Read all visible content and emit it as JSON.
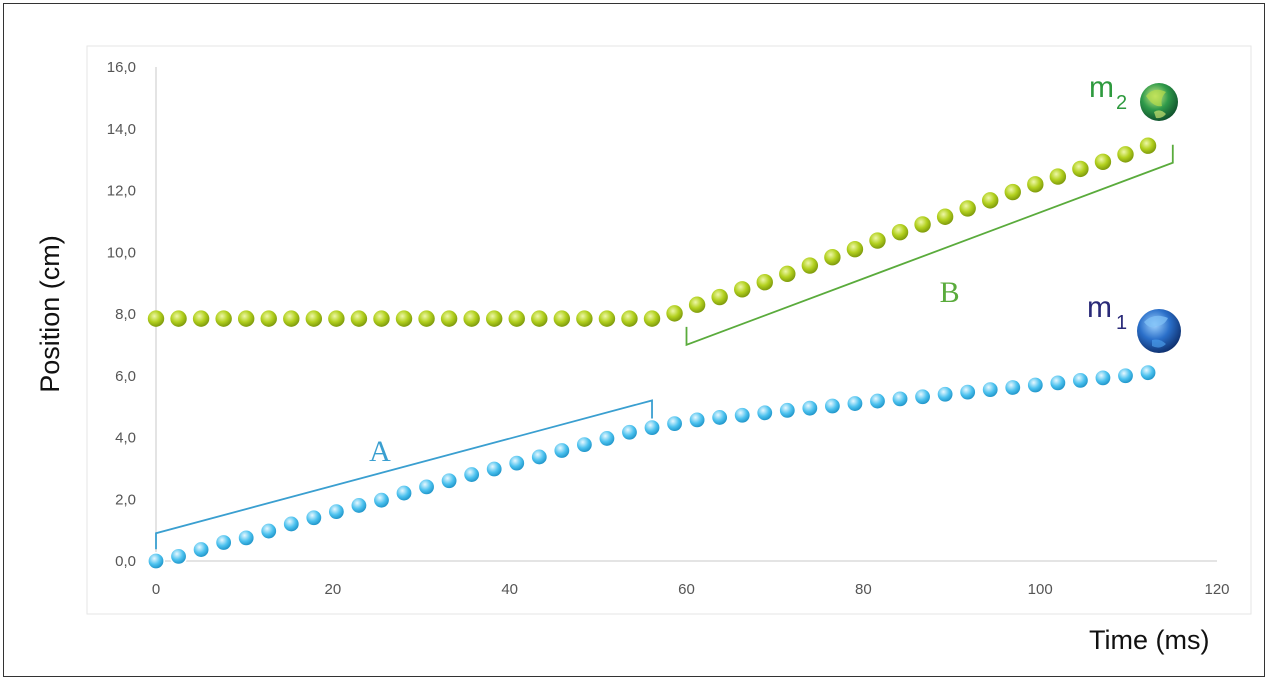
{
  "chart_data": {
    "type": "scatter",
    "xlabel": "Time (ms)",
    "ylabel": "Position (cm)",
    "xlim": [
      0,
      120
    ],
    "ylim": [
      0,
      16
    ],
    "x_ticks": [
      "0",
      "20",
      "40",
      "60",
      "80",
      "100",
      "120"
    ],
    "y_ticks": [
      "0,0",
      "2,0",
      "4,0",
      "6,0",
      "8,0",
      "10,0",
      "12,0",
      "14,0",
      "16,0"
    ],
    "grid": false,
    "series": [
      {
        "name": "m1",
        "color": "#38b6e8",
        "x": [
          0,
          2.55,
          5.1,
          7.65,
          10.2,
          12.75,
          15.3,
          17.85,
          20.4,
          22.95,
          25.5,
          28.05,
          30.6,
          33.15,
          35.7,
          38.25,
          40.8,
          43.35,
          45.9,
          48.45,
          51.0,
          53.55,
          56.1,
          58.65,
          61.2,
          63.75,
          66.3,
          68.85,
          71.4,
          73.95,
          76.5,
          79.05,
          81.6,
          84.15,
          86.7,
          89.25,
          91.8,
          94.35,
          96.9,
          99.45,
          102.0,
          104.55,
          107.1,
          109.65,
          112.2
        ],
        "y": [
          0.0,
          0.15,
          0.37,
          0.6,
          0.75,
          0.97,
          1.2,
          1.4,
          1.6,
          1.8,
          1.97,
          2.2,
          2.4,
          2.6,
          2.8,
          2.98,
          3.17,
          3.37,
          3.58,
          3.77,
          3.97,
          4.17,
          4.32,
          4.45,
          4.57,
          4.65,
          4.72,
          4.8,
          4.88,
          4.95,
          5.02,
          5.1,
          5.18,
          5.25,
          5.32,
          5.4,
          5.47,
          5.55,
          5.62,
          5.7,
          5.77,
          5.85,
          5.93,
          6.0,
          6.1
        ]
      },
      {
        "name": "m2",
        "color": "#a6c51b",
        "x": [
          0,
          2.55,
          5.1,
          7.65,
          10.2,
          12.75,
          15.3,
          17.85,
          20.4,
          22.95,
          25.5,
          28.05,
          30.6,
          33.15,
          35.7,
          38.25,
          40.8,
          43.35,
          45.9,
          48.45,
          51.0,
          53.55,
          56.1,
          58.65,
          61.2,
          63.75,
          66.3,
          68.85,
          71.4,
          73.95,
          76.5,
          79.05,
          81.6,
          84.15,
          86.7,
          89.25,
          91.8,
          94.35,
          96.9,
          99.45,
          102.0,
          104.55,
          107.1,
          109.65,
          112.2
        ],
        "y": [
          7.85,
          7.85,
          7.85,
          7.85,
          7.85,
          7.85,
          7.85,
          7.85,
          7.85,
          7.85,
          7.85,
          7.85,
          7.85,
          7.85,
          7.85,
          7.85,
          7.85,
          7.85,
          7.85,
          7.85,
          7.85,
          7.85,
          7.85,
          8.02,
          8.3,
          8.55,
          8.8,
          9.03,
          9.3,
          9.57,
          9.84,
          10.1,
          10.38,
          10.65,
          10.9,
          11.15,
          11.42,
          11.68,
          11.95,
          12.2,
          12.45,
          12.7,
          12.93,
          13.17,
          13.45
        ]
      }
    ],
    "annotations": {
      "bracket_a": {
        "label": "A",
        "color": "#3a9fd0",
        "x_start": 0,
        "x_end": 56.1,
        "y_start": 0.9,
        "y_end": 5.2
      },
      "bracket_b": {
        "label": "B",
        "color": "#5aab3c",
        "x_start": 60,
        "x_end": 115,
        "y_start": 7.0,
        "y_end": 12.9
      },
      "mass_labels": [
        {
          "letter": "m",
          "sub": "1",
          "color": "#2a2a78",
          "ball": "blue-ball-icon"
        },
        {
          "letter": "m",
          "sub": "2",
          "color": "#2e9a3e",
          "ball": "green-ball-icon"
        }
      ]
    }
  }
}
